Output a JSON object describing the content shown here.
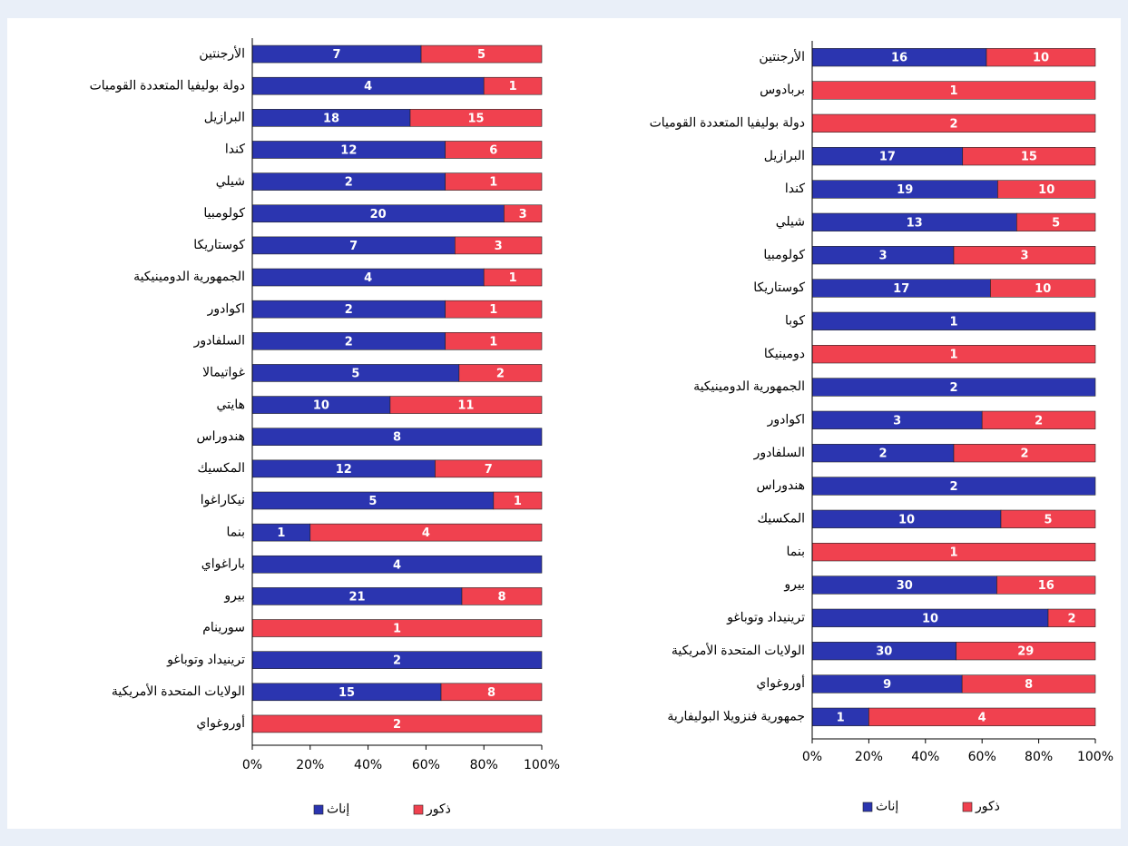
{
  "chart_data": [
    {
      "type": "bar",
      "stack": "percent",
      "orientation": "horizontal",
      "categories": [
        "الأرجنتين",
        "دولة بوليفيا المتعددة القوميات",
        "البرازيل",
        "كندا",
        "شيلي",
        "كولومبيا",
        "كوستاريكا",
        "الجمهورية الدومينيكية",
        "اكوادور",
        "السلفادور",
        "غواتيمالا",
        "هايتي",
        "هندوراس",
        "المكسيك",
        "نيكاراغوا",
        "بنما",
        "باراغواي",
        "بيرو",
        "سورينام",
        "ترينيداد وتوباغو",
        "الولايات المتحدة الأمريكية",
        "أوروغواي"
      ],
      "series": [
        {
          "name": "إناث",
          "color": "#2b35b0",
          "values": [
            7,
            4,
            18,
            12,
            2,
            20,
            7,
            4,
            2,
            2,
            5,
            10,
            8,
            12,
            5,
            1,
            4,
            21,
            null,
            2,
            15,
            null
          ]
        },
        {
          "name": "ذكور",
          "color": "#f0414f",
          "values": [
            5,
            1,
            15,
            6,
            1,
            3,
            3,
            1,
            1,
            1,
            2,
            11,
            null,
            7,
            1,
            4,
            null,
            8,
            1,
            null,
            8,
            2
          ]
        }
      ],
      "xlim": [
        0,
        100
      ],
      "xticks": [
        {
          "value": 0,
          "label": "0%"
        },
        {
          "value": 20,
          "label": "20%"
        },
        {
          "value": 40,
          "label": "40%"
        },
        {
          "value": 60,
          "label": "60%"
        },
        {
          "value": 80,
          "label": "80%"
        },
        {
          "value": 100,
          "label": "100%"
        }
      ],
      "legend": "bottom"
    },
    {
      "type": "bar",
      "stack": "percent",
      "orientation": "horizontal",
      "categories": [
        "الأرجنتين",
        "بربادوس",
        "دولة بوليفيا المتعددة القوميات",
        "البرازيل",
        "كندا",
        "شيلي",
        "كولومبيا",
        "كوستاريكا",
        "كوبا",
        "دومينيكا",
        "الجمهورية الدومينيكية",
        "اكوادور",
        "السلفادور",
        "هندوراس",
        "المكسيك",
        "بنما",
        "بيرو",
        "ترينيداد وتوباغو",
        "الولايات المتحدة الأمريكية",
        "أوروغواي",
        "جمهورية فنزويلا البوليفارية"
      ],
      "series": [
        {
          "name": "إناث",
          "color": "#2b35b0",
          "values": [
            16,
            null,
            null,
            17,
            19,
            13,
            3,
            17,
            1,
            null,
            2,
            3,
            2,
            2,
            10,
            null,
            30,
            10,
            30,
            9,
            1
          ]
        },
        {
          "name": "ذكور",
          "color": "#f0414f",
          "values": [
            10,
            1,
            2,
            15,
            10,
            5,
            3,
            10,
            null,
            1,
            null,
            2,
            2,
            null,
            5,
            1,
            16,
            2,
            29,
            8,
            4
          ]
        }
      ],
      "xlim": [
        0,
        100
      ],
      "xticks": [
        {
          "value": 0,
          "label": "0%"
        },
        {
          "value": 20,
          "label": "20%"
        },
        {
          "value": 40,
          "label": "40%"
        },
        {
          "value": 60,
          "label": "60%"
        },
        {
          "value": 80,
          "label": "80%"
        },
        {
          "value": 100,
          "label": "100%"
        }
      ],
      "legend": "bottom"
    }
  ]
}
